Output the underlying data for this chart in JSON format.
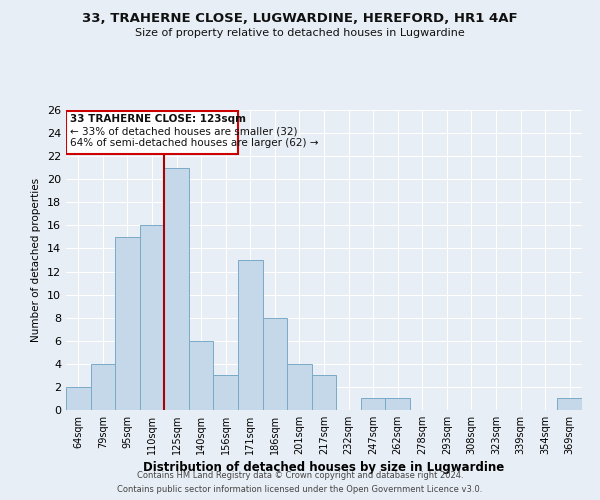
{
  "title": "33, TRAHERNE CLOSE, LUGWARDINE, HEREFORD, HR1 4AF",
  "subtitle": "Size of property relative to detached houses in Lugwardine",
  "xlabel": "Distribution of detached houses by size in Lugwardine",
  "ylabel": "Number of detached properties",
  "categories": [
    "64sqm",
    "79sqm",
    "95sqm",
    "110sqm",
    "125sqm",
    "140sqm",
    "156sqm",
    "171sqm",
    "186sqm",
    "201sqm",
    "217sqm",
    "232sqm",
    "247sqm",
    "262sqm",
    "278sqm",
    "293sqm",
    "308sqm",
    "323sqm",
    "339sqm",
    "354sqm",
    "369sqm"
  ],
  "values": [
    2,
    4,
    15,
    16,
    21,
    6,
    3,
    13,
    8,
    4,
    3,
    0,
    1,
    1,
    0,
    0,
    0,
    0,
    0,
    0,
    1
  ],
  "bar_color": "#c5d8ea",
  "bar_edge_color": "#7aaac8",
  "vline_color": "#aa0000",
  "annotation_title": "33 TRAHERNE CLOSE: 123sqm",
  "annotation_line1": "← 33% of detached houses are smaller (32)",
  "annotation_line2": "64% of semi-detached houses are larger (62) →",
  "annotation_box_color": "#cc0000",
  "ylim": [
    0,
    26
  ],
  "yticks": [
    0,
    2,
    4,
    6,
    8,
    10,
    12,
    14,
    16,
    18,
    20,
    22,
    24,
    26
  ],
  "footer1": "Contains HM Land Registry data © Crown copyright and database right 2024.",
  "footer2": "Contains public sector information licensed under the Open Government Licence v3.0.",
  "bg_color": "#e8eef5",
  "plot_bg_color": "#e8eef5"
}
